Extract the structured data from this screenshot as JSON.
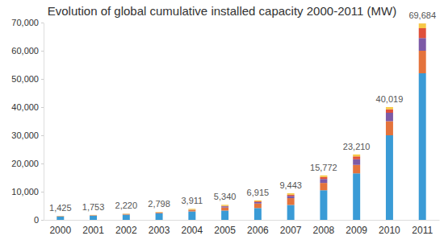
{
  "chart_data": {
    "type": "bar",
    "stacked": true,
    "grid": false,
    "title": "Evolution of global cumulative installed capacity 2000-2011 (MW)",
    "categories": [
      "2000",
      "2001",
      "2002",
      "2003",
      "2004",
      "2005",
      "2006",
      "2007",
      "2008",
      "2009",
      "2010",
      "2011"
    ],
    "series": [
      {
        "color": "#3a9bd6",
        "values": [
          1200,
          1480,
          1850,
          2300,
          3000,
          3300,
          4200,
          5300,
          10500,
          16500,
          30000,
          52000
        ]
      },
      {
        "color": "#e4733c",
        "values": [
          110,
          130,
          170,
          220,
          420,
          1100,
          1600,
          2400,
          2600,
          3000,
          5000,
          8000
        ]
      },
      {
        "color": "#7d5aa6",
        "values": [
          25,
          35,
          50,
          80,
          120,
          400,
          500,
          800,
          1400,
          2000,
          3000,
          4500
        ]
      },
      {
        "color": "#e0503a",
        "values": [
          10,
          15,
          20,
          30,
          50,
          150,
          250,
          400,
          700,
          1000,
          1200,
          3500
        ]
      },
      {
        "color": "#f7c846",
        "values": [
          80,
          93,
          130,
          168,
          321,
          390,
          365,
          543,
          572,
          710,
          819,
          1684
        ]
      }
    ],
    "totals": {
      "values": [
        1425,
        1753,
        2220,
        2798,
        3911,
        5340,
        6915,
        9443,
        15772,
        23210,
        40019,
        69684
      ],
      "value_labels": [
        "1,425",
        "1,753",
        "2,220",
        "2,798",
        "3,911",
        "5,340",
        "6,915",
        "9,443",
        "15,772",
        "23,210",
        "40,019",
        "69,684"
      ]
    },
    "ylim": [
      0,
      70000
    ],
    "yticks": [
      0,
      {
        "value": 10000,
        "label": "10,000"
      },
      {
        "value": 20000,
        "label": "20,000"
      },
      {
        "value": 30000,
        "label": "30,000"
      },
      {
        "value": 40000,
        "label": "40,000"
      },
      {
        "value": 50000,
        "label": "50,000"
      },
      {
        "value": 60000,
        "label": "60,000"
      },
      {
        "value": 70000,
        "label": "70,000"
      }
    ]
  }
}
